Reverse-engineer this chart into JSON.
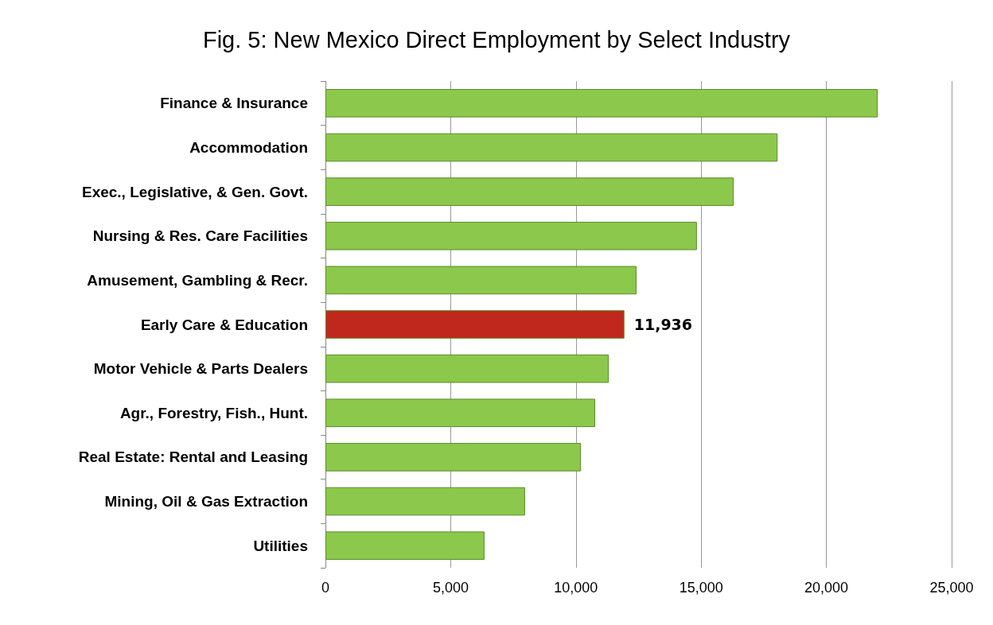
{
  "chart_data": {
    "type": "bar",
    "orientation": "horizontal",
    "title": "Fig. 5: New Mexico Direct Employment by Select Industry",
    "categories": [
      "Finance & Insurance",
      "Accommodation",
      "Exec., Legislative, & Gen. Govt.",
      "Nursing & Res. Care Facilities",
      "Amusement, Gambling & Recr.",
      "Early Care & Education",
      "Motor Vehicle & Parts Dealers",
      "Agr., Forestry, Fish., Hunt.",
      "Real Estate: Rental and Leasing",
      "Mining, Oil & Gas Extraction",
      "Utilities"
    ],
    "values": [
      22050,
      18050,
      16300,
      14830,
      12420,
      11936,
      11310,
      10770,
      10200,
      7970,
      6350
    ],
    "colors": [
      "#8cc84b",
      "#8cc84b",
      "#8cc84b",
      "#8cc84b",
      "#8cc84b",
      "#c0281e",
      "#8cc84b",
      "#8cc84b",
      "#8cc84b",
      "#8cc84b",
      "#8cc84b"
    ],
    "value_labels": [
      null,
      null,
      null,
      null,
      null,
      "11,936",
      null,
      null,
      null,
      null,
      null
    ],
    "xlim": [
      0,
      25000
    ],
    "xticks": [
      0,
      {
        "value": 5000,
        "label": "5,000"
      },
      {
        "value": 10000,
        "label": "10,000"
      },
      {
        "value": 15000,
        "label": "15,000"
      },
      {
        "value": 20000,
        "label": "20,000"
      },
      {
        "value": 25000,
        "label": "25,000"
      }
    ],
    "grid": "x"
  }
}
